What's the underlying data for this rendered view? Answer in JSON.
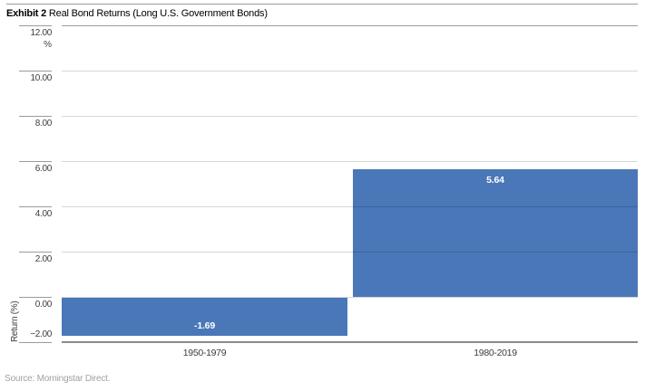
{
  "header": {
    "title_prefix": "Exhibit 2",
    "title_rest": "Real Bond Returns (Long U.S. Government Bonds)"
  },
  "chart_data": {
    "type": "bar",
    "title": "Real Bond Returns (Long U.S. Government Bonds)",
    "categories": [
      "1950-1979",
      "1980-2019"
    ],
    "values": [
      -1.69,
      5.64
    ],
    "bar_labels": [
      "-1.69",
      "5.64"
    ],
    "ylabel": "Return (%)",
    "unit_label": "%",
    "ylim": [
      -2,
      12
    ],
    "ytick_step": 2,
    "ytick_labels": [
      "12.00",
      "10.00",
      "8.00",
      "6.00",
      "4.00",
      "2.00",
      "0.00",
      "−2.00"
    ],
    "grid": true,
    "legend": "none",
    "bar_color": "#4a77b8"
  },
  "footer": {
    "source": "Source: Morningstar Direct."
  }
}
